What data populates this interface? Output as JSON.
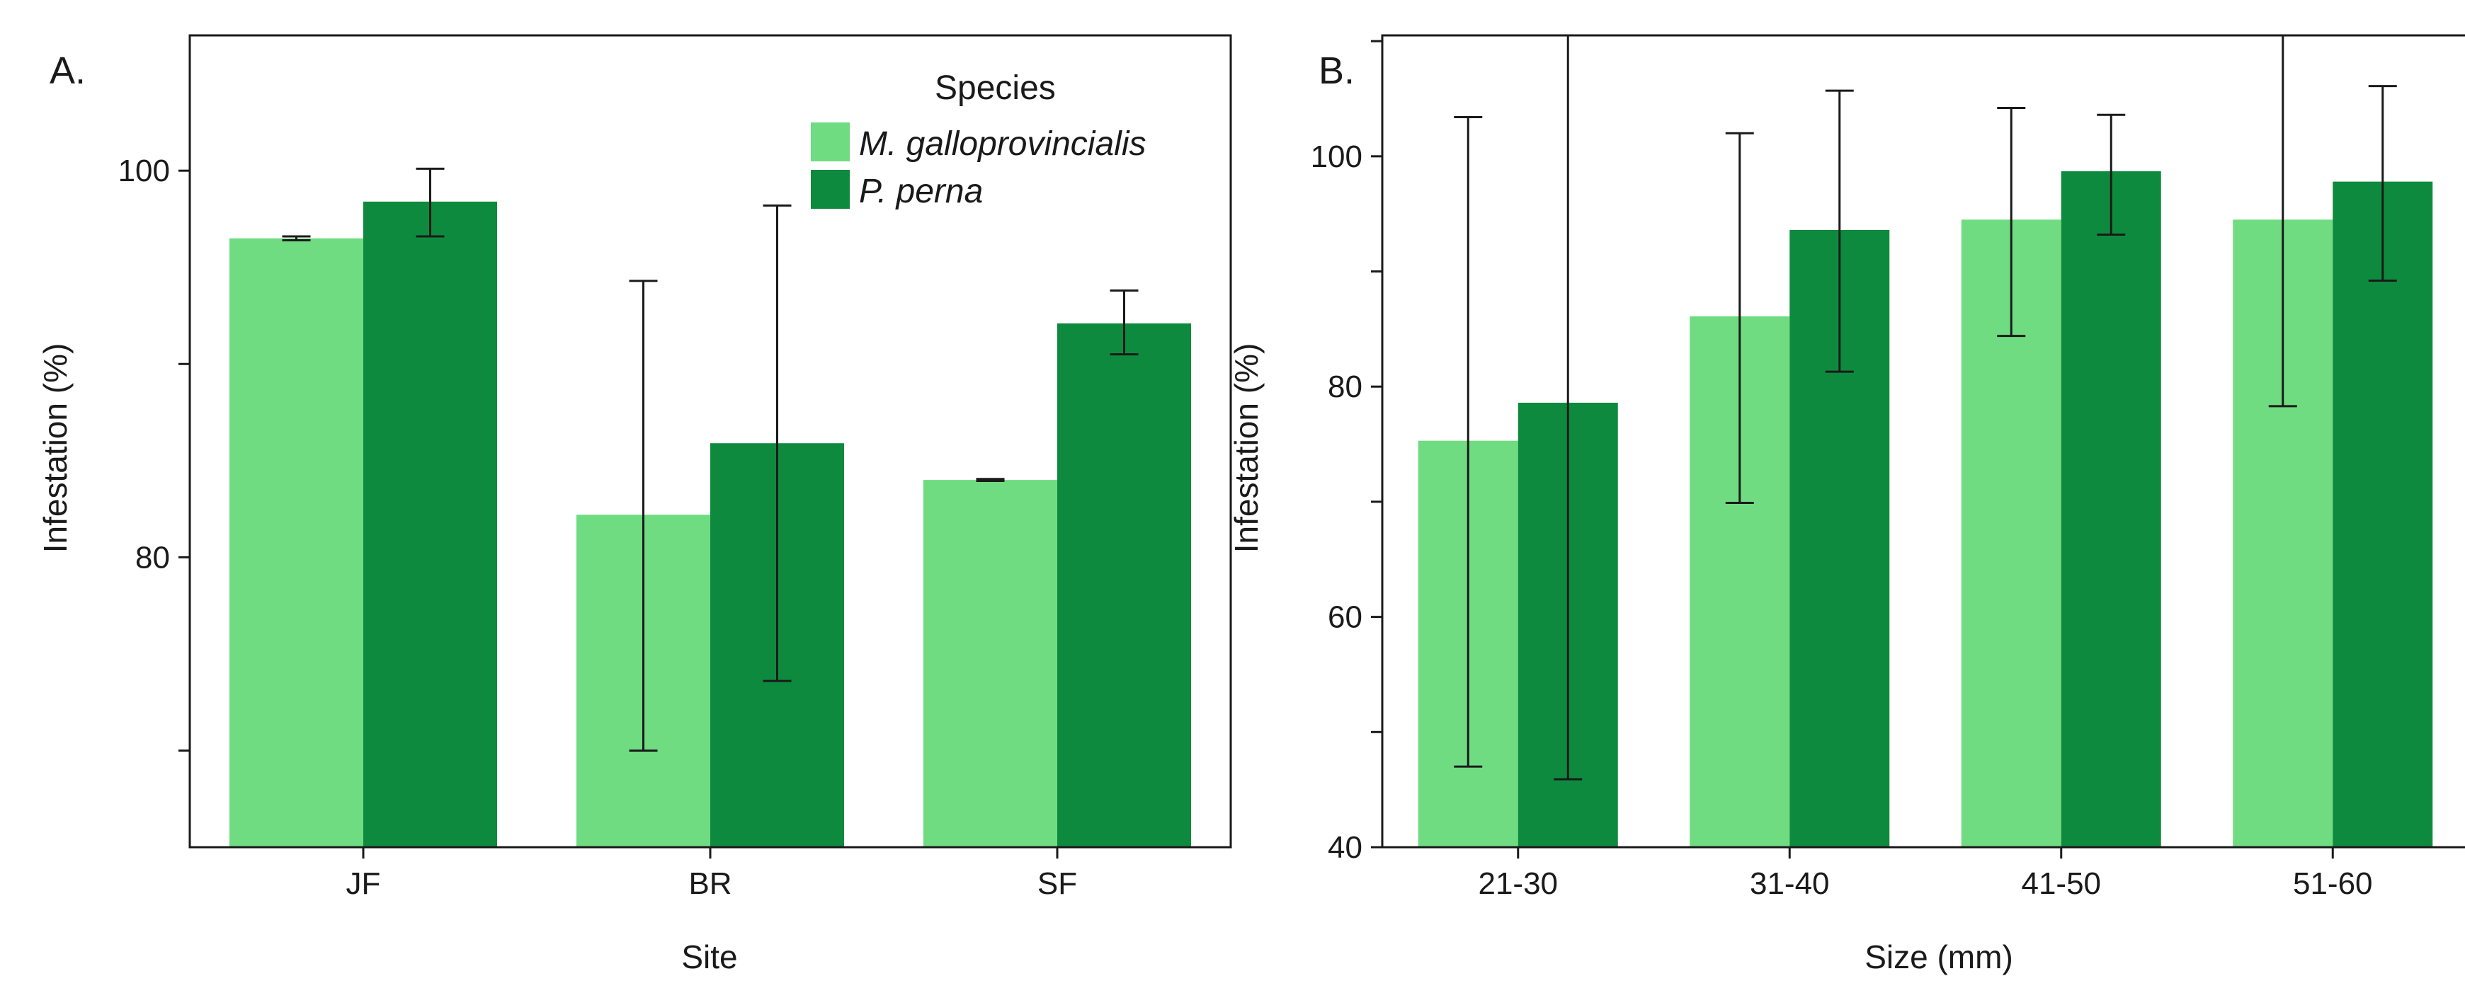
{
  "chart_data": [
    {
      "type": "bar",
      "panel_label": "A.",
      "categories": [
        "JF",
        "BR",
        "SF"
      ],
      "series": [
        {
          "name": "M. galloprovincialis",
          "values": [
            96.5,
            82.2,
            84.0
          ],
          "err_low": [
            96.4,
            70.0,
            83.95
          ],
          "err_high": [
            96.6,
            94.3,
            84.05
          ]
        },
        {
          "name": "P. perna",
          "values": [
            98.4,
            85.9,
            92.1
          ],
          "err_low": [
            96.6,
            73.6,
            90.5
          ],
          "err_high": [
            100.1,
            98.2,
            93.8
          ]
        }
      ],
      "xlabel": "Site",
      "ylabel": "Infestation (%)",
      "ylim": [
        65,
        107
      ],
      "yticks": [
        80,
        100
      ],
      "legend": {
        "title": "Species",
        "position": "top-right"
      }
    },
    {
      "type": "bar",
      "panel_label": "B.",
      "categories": [
        "21-30",
        "31-40",
        "41-50",
        "51-60"
      ],
      "series": [
        {
          "name": "M. galloprovincialis",
          "values": [
            75.3,
            86.1,
            94.5,
            94.5
          ],
          "err_low": [
            47.0,
            69.9,
            84.4,
            78.3
          ],
          "err_high": [
            103.4,
            102.0,
            104.2,
            110.5
          ]
        },
        {
          "name": "P. perna",
          "values": [
            78.6,
            93.6,
            98.7,
            97.8
          ],
          "err_low": [
            45.9,
            81.3,
            93.2,
            89.2
          ],
          "err_high": [
            110.5,
            105.7,
            103.6,
            106.1
          ]
        }
      ],
      "xlabel": "Size (mm)",
      "ylabel": "Infestation (%)",
      "ylim": [
        40,
        110.5
      ],
      "yticks": [
        40,
        60,
        80,
        100
      ]
    }
  ],
  "colors": {
    "light_green": "#6fdc82",
    "dark_green": "#0e8a3e",
    "axis": "#1a1a1a"
  }
}
